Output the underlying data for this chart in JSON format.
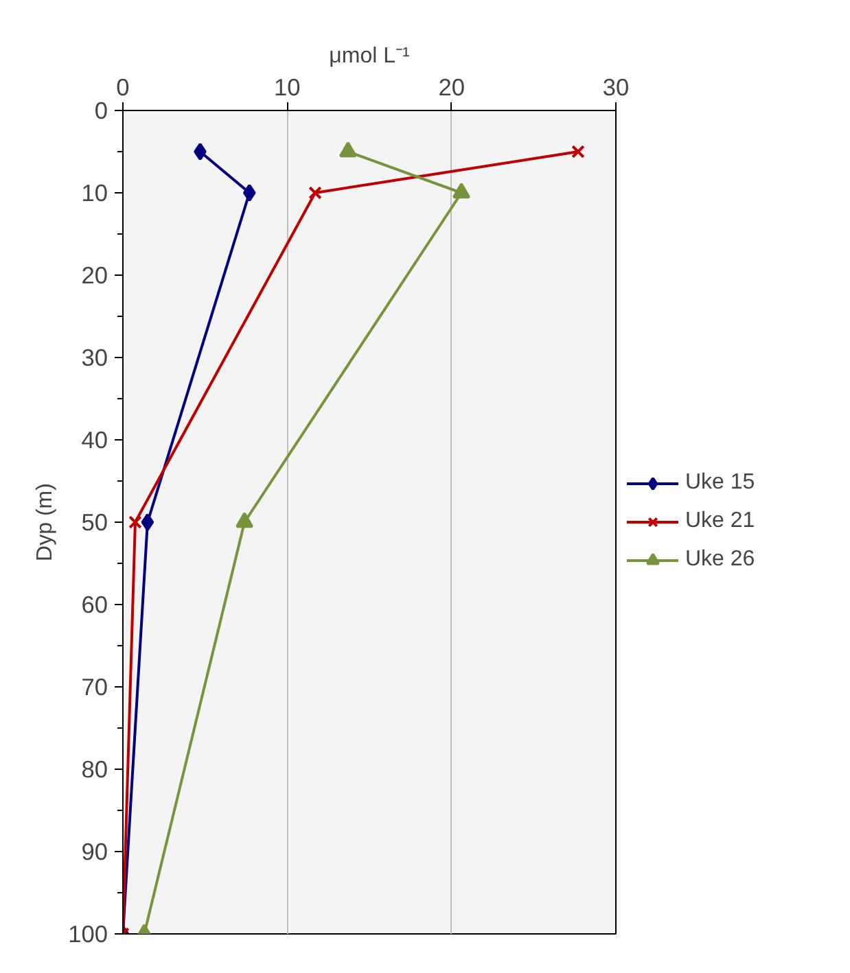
{
  "chart_data": {
    "type": "line",
    "xlabel": "μmol L⁻¹",
    "ylabel": "Dyp (m)",
    "xlim": [
      0,
      30
    ],
    "xticks": [
      0,
      10,
      20,
      30
    ],
    "ylim": [
      100,
      0
    ],
    "yticks": [
      0,
      10,
      20,
      30,
      40,
      50,
      60,
      70,
      80,
      90,
      100
    ],
    "grid": "x",
    "legend": "right",
    "line_style": "solid",
    "series": [
      {
        "name": "Uke 15",
        "color": "#000080",
        "marker": "diamond",
        "x": [
          4.7,
          7.7,
          1.5,
          0
        ],
        "values": [
          5,
          10,
          50,
          100
        ]
      },
      {
        "name": "Uke 21",
        "color": "#c00000",
        "marker": "cross",
        "x": [
          27.7,
          11.7,
          0.75,
          0
        ],
        "values": [
          5,
          10,
          50,
          100
        ]
      },
      {
        "name": "Uke 26",
        "color": "#77933c",
        "marker": "triangle",
        "x": [
          13.7,
          20.6,
          7.4,
          1.3
        ],
        "values": [
          5,
          10,
          50,
          100
        ]
      }
    ]
  }
}
